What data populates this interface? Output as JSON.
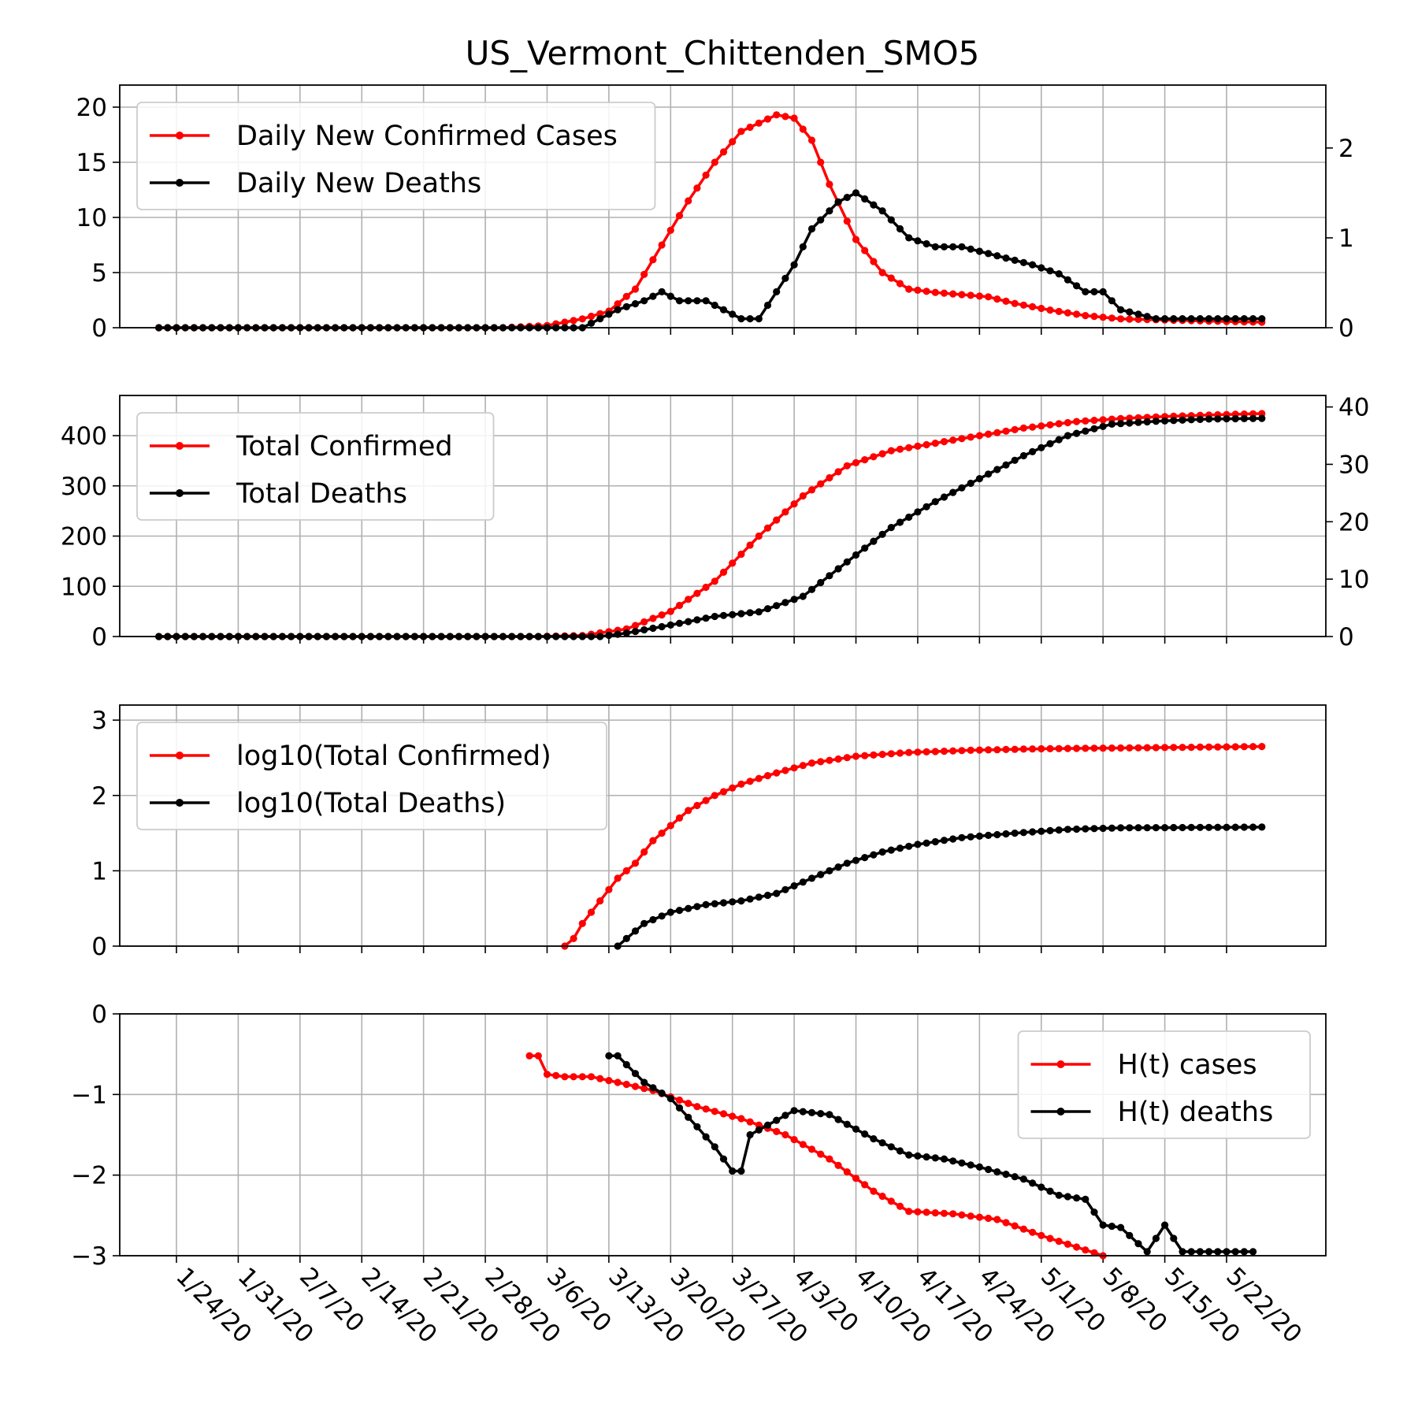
{
  "chart_data": {
    "type": "line",
    "title": "US_Vermont_Chittenden_SMO5",
    "x_start_date": "2020-01-22",
    "x_end_date": "2020-05-26",
    "x_tick_labels": [
      "1/24/20",
      "1/31/20",
      "2/7/20",
      "2/14/20",
      "2/21/20",
      "2/28/20",
      "3/6/20",
      "3/13/20",
      "3/20/20",
      "3/27/20",
      "4/3/20",
      "4/10/20",
      "4/17/20",
      "4/24/20",
      "5/1/20",
      "5/8/20",
      "5/15/20",
      "5/22/20"
    ],
    "colors": {
      "cases": "#ff0000",
      "deaths": "#000000",
      "grid": "#b0b0b0"
    },
    "panels": [
      {
        "name": "daily",
        "ylim_left": [
          0,
          22
        ],
        "yticks_left": [
          "0",
          "5",
          "10",
          "15",
          "20"
        ],
        "ylim_right": [
          0,
          2.7
        ],
        "yticks_right": [
          "0",
          "1",
          "2"
        ],
        "legend_loc": "upper-left",
        "series": [
          {
            "name": "Daily New Confirmed Cases",
            "axis": "left",
            "color": "#ff0000",
            "points": [
              [
                "2020-01-22",
                0
              ],
              [
                "2020-03-01",
                0
              ],
              [
                "2020-03-06",
                0.2
              ],
              [
                "2020-03-10",
                0.8
              ],
              [
                "2020-03-13",
                1.5
              ],
              [
                "2020-03-16",
                3.5
              ],
              [
                "2020-03-19",
                7.5
              ],
              [
                "2020-03-22",
                11.5
              ],
              [
                "2020-03-25",
                15.0
              ],
              [
                "2020-03-28",
                17.8
              ],
              [
                "2020-04-01",
                19.3
              ],
              [
                "2020-04-03",
                19.0
              ],
              [
                "2020-04-05",
                17.0
              ],
              [
                "2020-04-07",
                13.0
              ],
              [
                "2020-04-10",
                8.0
              ],
              [
                "2020-04-13",
                5.0
              ],
              [
                "2020-04-16",
                3.5
              ],
              [
                "2020-04-19",
                3.2
              ],
              [
                "2020-04-25",
                2.8
              ],
              [
                "2020-04-28",
                2.2
              ],
              [
                "2020-05-02",
                1.6
              ],
              [
                "2020-05-06",
                1.1
              ],
              [
                "2020-05-10",
                0.8
              ],
              [
                "2020-05-15",
                0.7
              ],
              [
                "2020-05-20",
                0.6
              ],
              [
                "2020-05-26",
                0.5
              ]
            ]
          },
          {
            "name": "Daily New Deaths",
            "axis": "right",
            "color": "#000000",
            "points": [
              [
                "2020-01-22",
                0
              ],
              [
                "2020-03-10",
                0
              ],
              [
                "2020-03-12",
                0.1
              ],
              [
                "2020-03-14",
                0.2
              ],
              [
                "2020-03-17",
                0.3
              ],
              [
                "2020-03-19",
                0.4
              ],
              [
                "2020-03-21",
                0.3
              ],
              [
                "2020-03-24",
                0.3
              ],
              [
                "2020-03-26",
                0.2
              ],
              [
                "2020-03-28",
                0.1
              ],
              [
                "2020-03-30",
                0.1
              ],
              [
                "2020-04-01",
                0.4
              ],
              [
                "2020-04-03",
                0.7
              ],
              [
                "2020-04-05",
                1.1
              ],
              [
                "2020-04-08",
                1.4
              ],
              [
                "2020-04-10",
                1.5
              ],
              [
                "2020-04-13",
                1.3
              ],
              [
                "2020-04-16",
                1.0
              ],
              [
                "2020-04-19",
                0.9
              ],
              [
                "2020-04-22",
                0.9
              ],
              [
                "2020-04-26",
                0.8
              ],
              [
                "2020-04-30",
                0.7
              ],
              [
                "2020-05-03",
                0.6
              ],
              [
                "2020-05-06",
                0.4
              ],
              [
                "2020-05-08",
                0.4
              ],
              [
                "2020-05-10",
                0.2
              ],
              [
                "2020-05-14",
                0.1
              ],
              [
                "2020-05-20",
                0.1
              ],
              [
                "2020-05-26",
                0.1
              ]
            ]
          }
        ]
      },
      {
        "name": "total",
        "ylim_left": [
          0,
          480
        ],
        "yticks_left": [
          "0",
          "100",
          "200",
          "300",
          "400"
        ],
        "ylim_right": [
          0,
          42
        ],
        "yticks_right": [
          "0",
          "10",
          "20",
          "30",
          "40"
        ],
        "legend_loc": "upper-left",
        "series": [
          {
            "name": "Total Confirmed",
            "axis": "left",
            "color": "#ff0000",
            "points": [
              [
                "2020-01-22",
                0
              ],
              [
                "2020-03-05",
                0
              ],
              [
                "2020-03-10",
                2
              ],
              [
                "2020-03-15",
                15
              ],
              [
                "2020-03-20",
                50
              ],
              [
                "2020-03-25",
                110
              ],
              [
                "2020-03-30",
                200
              ],
              [
                "2020-04-04",
                280
              ],
              [
                "2020-04-09",
                340
              ],
              [
                "2020-04-14",
                370
              ],
              [
                "2020-04-19",
                385
              ],
              [
                "2020-04-24",
                400
              ],
              [
                "2020-04-29",
                415
              ],
              [
                "2020-05-05",
                428
              ],
              [
                "2020-05-10",
                434
              ],
              [
                "2020-05-15",
                438
              ],
              [
                "2020-05-20",
                441
              ],
              [
                "2020-05-26",
                444
              ]
            ]
          },
          {
            "name": "Total Deaths",
            "axis": "right",
            "color": "#000000",
            "points": [
              [
                "2020-01-22",
                0
              ],
              [
                "2020-03-12",
                0
              ],
              [
                "2020-03-15",
                0.6
              ],
              [
                "2020-03-20",
                2.0
              ],
              [
                "2020-03-25",
                3.5
              ],
              [
                "2020-03-30",
                4.3
              ],
              [
                "2020-04-04",
                7.0
              ],
              [
                "2020-04-09",
                13.0
              ],
              [
                "2020-04-14",
                19.0
              ],
              [
                "2020-04-19",
                23.5
              ],
              [
                "2020-04-24",
                27.5
              ],
              [
                "2020-04-29",
                31.5
              ],
              [
                "2020-05-04",
                35.0
              ],
              [
                "2020-05-09",
                37.0
              ],
              [
                "2020-05-14",
                37.5
              ],
              [
                "2020-05-20",
                37.9
              ],
              [
                "2020-05-26",
                38.0
              ]
            ]
          }
        ]
      },
      {
        "name": "log",
        "ylim_left": [
          0,
          3.2
        ],
        "yticks_left": [
          "0",
          "1",
          "2",
          "3"
        ],
        "legend_loc": "upper-left",
        "series": [
          {
            "name": "log10(Total Confirmed)",
            "axis": "left",
            "color": "#ff0000",
            "points": [
              [
                "2020-03-08",
                0.0
              ],
              [
                "2020-03-09",
                0.1
              ],
              [
                "2020-03-10",
                0.3
              ],
              [
                "2020-03-12",
                0.6
              ],
              [
                "2020-03-14",
                0.9
              ],
              [
                "2020-03-16",
                1.1
              ],
              [
                "2020-03-18",
                1.4
              ],
              [
                "2020-03-20",
                1.6
              ],
              [
                "2020-03-22",
                1.8
              ],
              [
                "2020-03-25",
                2.0
              ],
              [
                "2020-03-28",
                2.15
              ],
              [
                "2020-04-01",
                2.3
              ],
              [
                "2020-04-05",
                2.43
              ],
              [
                "2020-04-10",
                2.52
              ],
              [
                "2020-04-16",
                2.57
              ],
              [
                "2020-04-23",
                2.6
              ],
              [
                "2020-05-01",
                2.62
              ],
              [
                "2020-05-10",
                2.63
              ],
              [
                "2020-05-26",
                2.65
              ]
            ]
          },
          {
            "name": "log10(Total Deaths)",
            "axis": "left",
            "color": "#000000",
            "points": [
              [
                "2020-03-14",
                0.0
              ],
              [
                "2020-03-15",
                0.1
              ],
              [
                "2020-03-17",
                0.3
              ],
              [
                "2020-03-20",
                0.45
              ],
              [
                "2020-03-24",
                0.55
              ],
              [
                "2020-03-28",
                0.6
              ],
              [
                "2020-04-01",
                0.7
              ],
              [
                "2020-04-05",
                0.9
              ],
              [
                "2020-04-09",
                1.1
              ],
              [
                "2020-04-13",
                1.25
              ],
              [
                "2020-04-17",
                1.35
              ],
              [
                "2020-04-22",
                1.44
              ],
              [
                "2020-04-28",
                1.5
              ],
              [
                "2020-05-04",
                1.55
              ],
              [
                "2020-05-10",
                1.57
              ],
              [
                "2020-05-26",
                1.58
              ]
            ]
          }
        ]
      },
      {
        "name": "ht",
        "ylim_left": [
          -3,
          0
        ],
        "yticks_left": [
          "−3",
          "−2",
          "−1",
          "0"
        ],
        "legend_loc": "upper-right",
        "series": [
          {
            "name": "H(t) cases",
            "axis": "left",
            "color": "#ff0000",
            "points": [
              [
                "2020-03-04",
                -0.52
              ],
              [
                "2020-03-05",
                -0.52
              ],
              [
                "2020-03-06",
                -0.75
              ],
              [
                "2020-03-08",
                -0.78
              ],
              [
                "2020-03-11",
                -0.78
              ],
              [
                "2020-03-14",
                -0.85
              ],
              [
                "2020-03-18",
                -0.95
              ],
              [
                "2020-03-23",
                -1.15
              ],
              [
                "2020-03-28",
                -1.3
              ],
              [
                "2020-04-02",
                -1.5
              ],
              [
                "2020-04-07",
                -1.8
              ],
              [
                "2020-04-12",
                -2.2
              ],
              [
                "2020-04-16",
                -2.45
              ],
              [
                "2020-04-21",
                -2.48
              ],
              [
                "2020-04-26",
                -2.55
              ],
              [
                "2020-05-01",
                -2.75
              ],
              [
                "2020-05-08",
                -3.0
              ]
            ]
          },
          {
            "name": "H(t) deaths",
            "axis": "left",
            "color": "#000000",
            "points": [
              [
                "2020-03-13",
                -0.52
              ],
              [
                "2020-03-14",
                -0.52
              ],
              [
                "2020-03-17",
                -0.85
              ],
              [
                "2020-03-20",
                -1.05
              ],
              [
                "2020-03-23",
                -1.4
              ],
              [
                "2020-03-25",
                -1.65
              ],
              [
                "2020-03-27",
                -1.95
              ],
              [
                "2020-03-28",
                -1.95
              ],
              [
                "2020-03-29",
                -1.5
              ],
              [
                "2020-04-03",
                -1.2
              ],
              [
                "2020-04-07",
                -1.25
              ],
              [
                "2020-04-12",
                -1.55
              ],
              [
                "2020-04-16",
                -1.75
              ],
              [
                "2020-04-20",
                -1.8
              ],
              [
                "2020-04-24",
                -1.9
              ],
              [
                "2020-04-29",
                -2.05
              ],
              [
                "2020-05-03",
                -2.25
              ],
              [
                "2020-05-06",
                -2.3
              ],
              [
                "2020-05-08",
                -2.62
              ],
              [
                "2020-05-10",
                -2.65
              ],
              [
                "2020-05-13",
                -2.95
              ],
              [
                "2020-05-15",
                -2.62
              ],
              [
                "2020-05-17",
                -2.95
              ],
              [
                "2020-05-21",
                -2.95
              ],
              [
                "2020-05-25",
                -2.95
              ]
            ]
          }
        ]
      }
    ]
  }
}
